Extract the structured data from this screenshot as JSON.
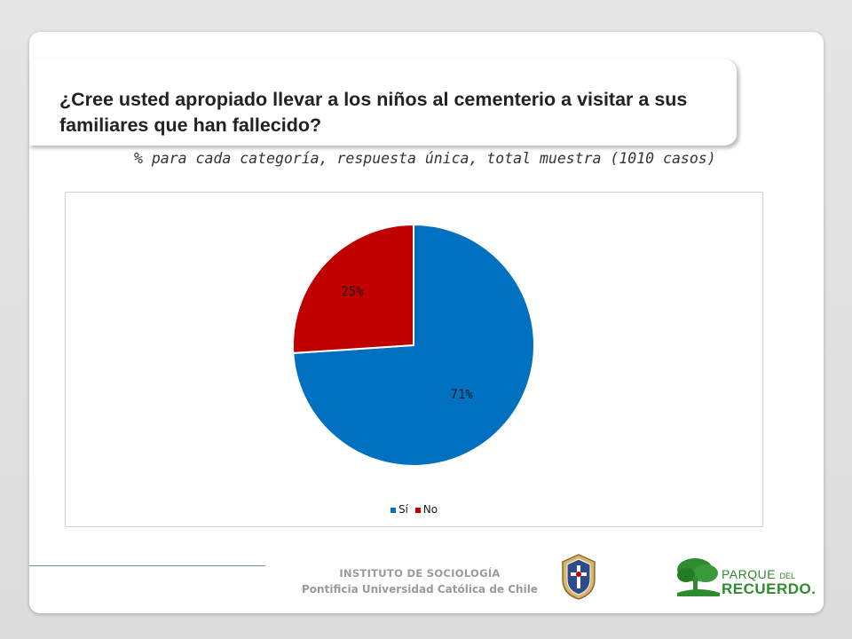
{
  "title": "¿Cree usted apropiado llevar a los niños al cementerio a visitar a sus familiares que han fallecido?",
  "subtitle": "% para cada categoría, respuesta única, total muestra (1010 casos)",
  "chart_data": {
    "type": "pie",
    "categories": [
      "Sí",
      "No"
    ],
    "values": [
      71,
      25
    ],
    "value_labels": [
      "71%",
      "25%"
    ],
    "colors": [
      "#0070c0",
      "#c00000"
    ],
    "legend_position": "bottom",
    "title": "",
    "xlabel": "",
    "ylabel": ""
  },
  "footer": {
    "institute": "INSTITUTO DE SOCIOLOGÍA",
    "university": "Pontificia Universidad Católica de Chile",
    "seal_icon": "university-seal-icon",
    "park_logo": {
      "word1": "PARQUE",
      "word_small": "DEL",
      "word2": "RECUERDO."
    }
  }
}
